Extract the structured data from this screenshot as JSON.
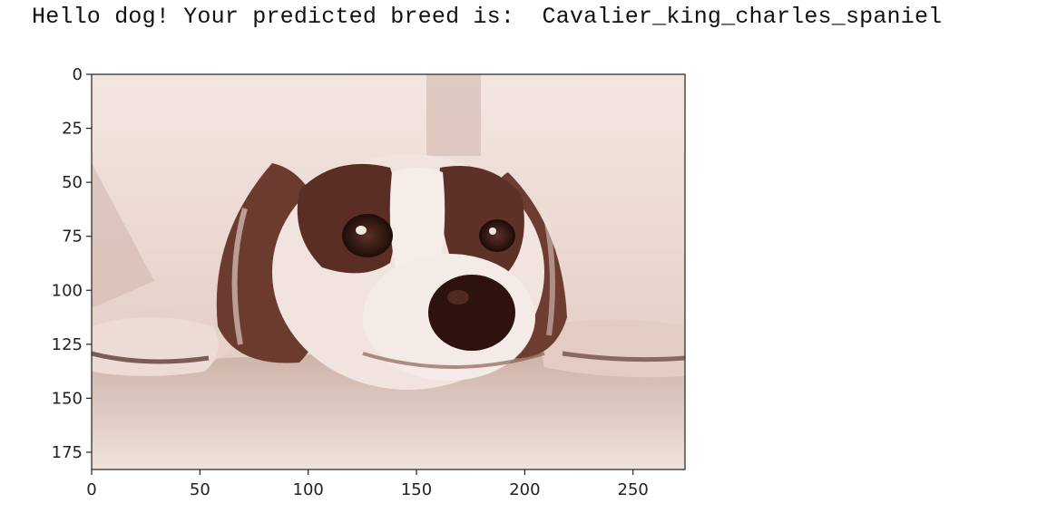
{
  "output": {
    "prefix": "Hello dog! Your predicted breed is:",
    "breed": "Cavalier_king_charles_spaniel"
  },
  "plot": {
    "image_description_icon": "dog-photo",
    "image_width": 274,
    "image_height": 183,
    "xticks": [
      "0",
      "50",
      "100",
      "150",
      "200",
      "250"
    ],
    "yticks": [
      "0",
      "25",
      "50",
      "75",
      "100",
      "125",
      "150",
      "175"
    ],
    "xtick_values": [
      0,
      50,
      100,
      150,
      200,
      250
    ],
    "ytick_values": [
      0,
      25,
      50,
      75,
      100,
      125,
      150,
      175
    ],
    "colors": {
      "sepia_light": "#eddcd6",
      "sepia_mid": "#b89486",
      "sepia_dark": "#3f1d16"
    }
  }
}
